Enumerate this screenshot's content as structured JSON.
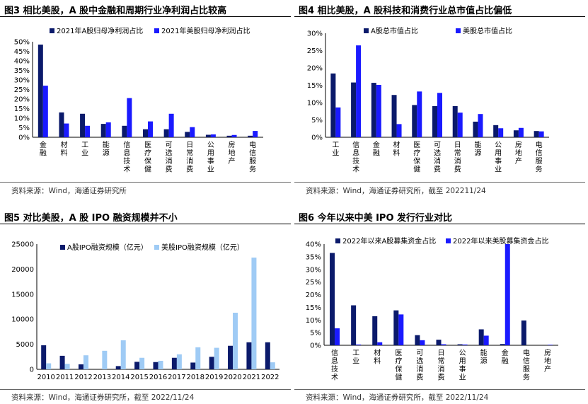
{
  "colors": {
    "dark": "#0b1a6b",
    "blue": "#1a1aff",
    "light": "#9fcbf5"
  },
  "panels": [
    {
      "title": "图3  相比美股，A 股中金融和周期行业净利润占比较高",
      "source": "资料来源：Wind，海通证券研究所"
    },
    {
      "title": "图4  相比美股，A 股科技和消费行业总市值占比偏低",
      "source": "资料来源：Wind，海通证券研究所，截至 202211/24"
    },
    {
      "title": "图5  对比美股，A 股 IPO 融资规模并不小",
      "source": "资料来源：Wind，海通证券研究所，截至 2022/11/24"
    },
    {
      "title": "图6  今年以来中美 IPO 发行行业对比",
      "source": "资料来源：Wind，海通证券研究所，截至 2022/11/24"
    }
  ],
  "chart_data": [
    {
      "type": "bar",
      "categories": [
        "金融",
        "材料",
        "工业",
        "能源",
        "信息技术",
        "医疗保健",
        "可选消费",
        "日常消费",
        "公用事业",
        "房地产",
        "电信服务"
      ],
      "series": [
        {
          "name": "2021年A股归母净利润占比",
          "values": [
            48.5,
            13,
            12.3,
            7,
            6,
            4.2,
            4.2,
            2.8,
            1.3,
            0.8,
            0.8
          ]
        },
        {
          "name": "2021年美股归母净利润占比",
          "values": [
            27,
            7.2,
            6,
            7.8,
            20.5,
            8.3,
            12.3,
            5.3,
            1.5,
            1.2,
            3.3
          ]
        }
      ],
      "yticks": [
        "0%",
        "5%",
        "10%",
        "15%",
        "20%",
        "25%",
        "30%",
        "35%",
        "40%",
        "45%",
        "50%"
      ],
      "ylim": [
        0,
        50
      ]
    },
    {
      "type": "bar",
      "categories": [
        "工业",
        "信息技术",
        "金融",
        "材料",
        "医疗保健",
        "可选消费",
        "日常消费",
        "能源",
        "公用事业",
        "房地产",
        "电信服务"
      ],
      "series": [
        {
          "name": "A股总市值占比",
          "values": [
            18.4,
            15.8,
            15.7,
            12.2,
            9.3,
            9,
            9,
            4.5,
            3.5,
            2,
            1.8
          ]
        },
        {
          "name": "美股总市值占比",
          "values": [
            8.6,
            26.5,
            15.1,
            3.8,
            13.2,
            12.8,
            7.1,
            6.7,
            2.6,
            2.7,
            1.7
          ]
        }
      ],
      "yticks": [
        "0%",
        "5%",
        "10%",
        "15%",
        "20%",
        "25%",
        "30%"
      ],
      "ylim": [
        0,
        30
      ]
    },
    {
      "type": "bar",
      "categories": [
        "2010",
        "2011",
        "2012",
        "2013",
        "2014",
        "2015",
        "2016",
        "2017",
        "2018",
        "2019",
        "2020",
        "2021",
        "2022"
      ],
      "series": [
        {
          "name": "A股IPO融资规模（亿元）",
          "values": [
            4800,
            2700,
            1000,
            0,
            650,
            1500,
            1450,
            2300,
            1350,
            2500,
            4700,
            5400,
            5400
          ]
        },
        {
          "name": "美股IPO融资规模（亿元）",
          "values": [
            1200,
            1100,
            2800,
            3700,
            5800,
            2300,
            1700,
            3000,
            4400,
            4300,
            11300,
            22300,
            1400
          ]
        }
      ],
      "yticks": [
        "0",
        "5000",
        "10000",
        "15000",
        "20000",
        "25000"
      ],
      "ylim": [
        0,
        25000
      ]
    },
    {
      "type": "bar",
      "categories": [
        "信息技术",
        "工业",
        "材料",
        "医疗保健",
        "可选消费",
        "日常消费",
        "公用事业",
        "能源",
        "金融",
        "电信服务",
        "房地产"
      ],
      "series": [
        {
          "name": "2022年以来A股募集资金占比",
          "values": [
            36.5,
            15.8,
            11.5,
            13.8,
            4,
            2.2,
            0.4,
            6.3,
            0.5,
            9.8,
            0
          ]
        },
        {
          "name": "2022年以来美股募集资金占比",
          "values": [
            6.7,
            0.3,
            1.2,
            12.2,
            2,
            0.4,
            0.3,
            3.8,
            40,
            0,
            0.2
          ]
        }
      ],
      "yticks": [
        "0%",
        "5%",
        "10%",
        "15%",
        "20%",
        "25%",
        "30%",
        "35%",
        "40%"
      ],
      "ylim": [
        0,
        40
      ]
    }
  ]
}
